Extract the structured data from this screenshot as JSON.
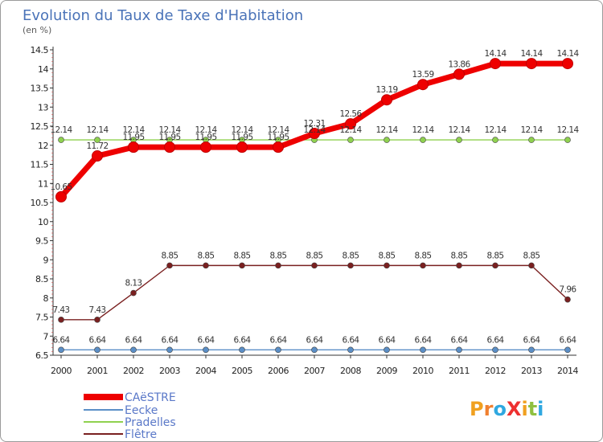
{
  "chart_data": {
    "type": "line",
    "title": "Evolution du Taux de Taxe d'Habitation",
    "subtitle": "(en %)",
    "xlabel": "",
    "ylabel": "",
    "categories": [
      "2000",
      "2001",
      "2002",
      "2003",
      "2004",
      "2005",
      "2006",
      "2007",
      "2008",
      "2009",
      "2010",
      "2011",
      "2012",
      "2013",
      "2014"
    ],
    "ylim": [
      6.5,
      14.5
    ],
    "yticks": [
      "6.5",
      "7",
      "7.5",
      "8",
      "8.5",
      "9",
      "9.5",
      "10",
      "10.5",
      "11",
      "11.5",
      "12",
      "12.5",
      "13",
      "13.5",
      "14",
      "14.5"
    ],
    "grid": false,
    "legend_position": "bottom-left",
    "series": [
      {
        "name": "CAëSTRE",
        "color": "#ee0000",
        "values": [
          10.65,
          11.72,
          11.95,
          11.95,
          11.95,
          11.95,
          11.95,
          12.31,
          12.56,
          13.19,
          13.59,
          13.86,
          14.14,
          14.14,
          14.14
        ],
        "labels": [
          "10.65",
          "11.72",
          "11.95",
          "11.95",
          "11.95",
          "11.95",
          "11.95",
          "12.31",
          "12.56",
          "13.19",
          "13.59",
          "13.86",
          "14.14",
          "14.14",
          "14.14"
        ]
      },
      {
        "name": "Eecke",
        "color": "#5b8fc7",
        "values": [
          6.64,
          6.64,
          6.64,
          6.64,
          6.64,
          6.64,
          6.64,
          6.64,
          6.64,
          6.64,
          6.64,
          6.64,
          6.64,
          6.64,
          6.64
        ],
        "labels": [
          "6.64",
          "6.64",
          "6.64",
          "6.64",
          "6.64",
          "6.64",
          "6.64",
          "6.64",
          "6.64",
          "6.64",
          "6.64",
          "6.64",
          "6.64",
          "6.64",
          "6.64"
        ]
      },
      {
        "name": "Pradelles",
        "color": "#8fd14f",
        "values": [
          12.14,
          12.14,
          12.14,
          12.14,
          12.14,
          12.14,
          12.14,
          12.14,
          12.14,
          12.14,
          12.14,
          12.14,
          12.14,
          12.14,
          12.14
        ],
        "labels": [
          "12.14",
          "12.14",
          "12.14",
          "12.14",
          "12.14",
          "12.14",
          "12.14",
          "12.14",
          "12.14",
          "12.14",
          "12.14",
          "12.14",
          "12.14",
          "12.14",
          "12.14"
        ]
      },
      {
        "name": "Flêtre",
        "color": "#7a2020",
        "values": [
          7.43,
          7.43,
          8.13,
          8.85,
          8.85,
          8.85,
          8.85,
          8.85,
          8.85,
          8.85,
          8.85,
          8.85,
          8.85,
          8.85,
          7.96
        ],
        "labels": [
          "7.43",
          "7.43",
          "8.13",
          "8.85",
          "8.85",
          "8.85",
          "8.85",
          "8.85",
          "8.85",
          "8.85",
          "8.85",
          "8.85",
          "8.85",
          "8.85",
          "7.96"
        ]
      }
    ],
    "logo": {
      "text": "ProXiti"
    }
  }
}
